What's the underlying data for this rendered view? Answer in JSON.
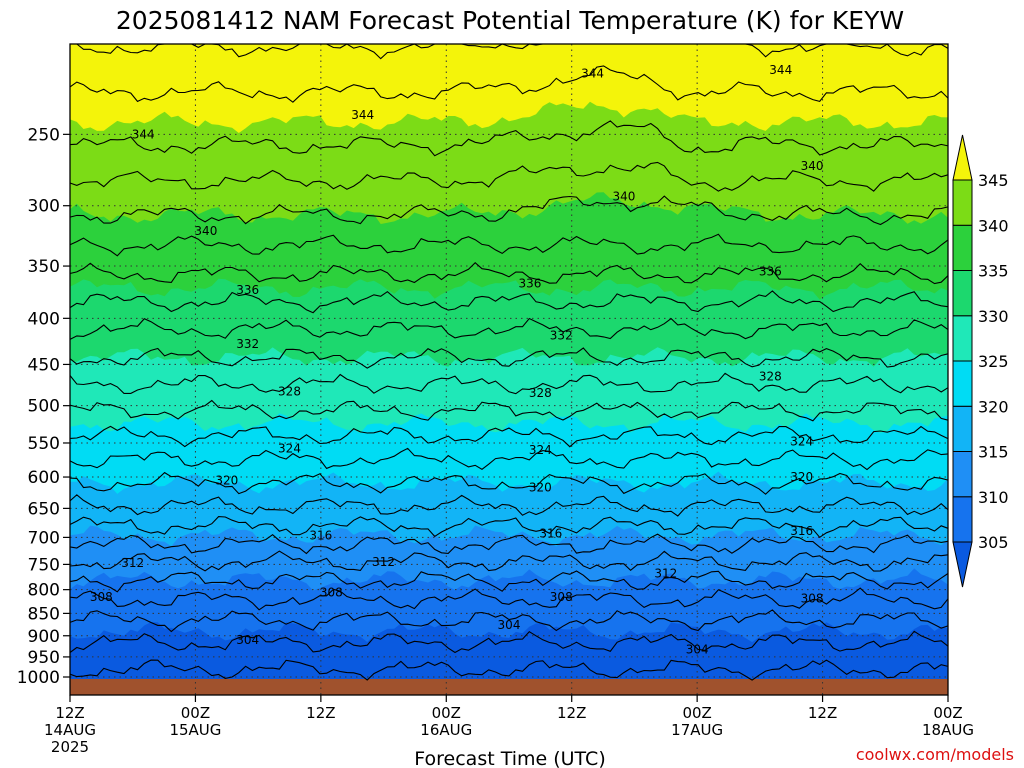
{
  "chart_data": {
    "type": "heatmap",
    "title": "2025081412 NAM Forecast Potential Temperature (K) for KEYW",
    "xlabel": "Forecast Time (UTC)",
    "ylabel": "",
    "y_scale": "log",
    "y_reversed": true,
    "ylim": [
      1000,
      200
    ],
    "y_ticks": [
      250,
      300,
      350,
      400,
      450,
      500,
      550,
      600,
      650,
      700,
      750,
      800,
      850,
      900,
      950,
      1000
    ],
    "xlim": [
      0,
      84
    ],
    "x_ticks": [
      {
        "h": 0,
        "line1": "12Z",
        "line2": "14AUG",
        "line3": "2025"
      },
      {
        "h": 12,
        "line1": "00Z",
        "line2": "15AUG",
        "line3": ""
      },
      {
        "h": 24,
        "line1": "12Z",
        "line2": "",
        "line3": ""
      },
      {
        "h": 36,
        "line1": "00Z",
        "line2": "16AUG",
        "line3": ""
      },
      {
        "h": 48,
        "line1": "12Z",
        "line2": "",
        "line3": ""
      },
      {
        "h": 60,
        "line1": "00Z",
        "line2": "17AUG",
        "line3": ""
      },
      {
        "h": 72,
        "line1": "12Z",
        "line2": "",
        "line3": ""
      },
      {
        "h": 84,
        "line1": "00Z",
        "line2": "18AUG",
        "line3": ""
      }
    ],
    "grid": true,
    "ground_color": "#a0522d",
    "colorbar": {
      "levels": [
        305,
        310,
        315,
        320,
        325,
        330,
        335,
        340,
        345
      ],
      "colors": [
        "#0a5ae0",
        "#1673ee",
        "#1f8ff5",
        "#12b4f6",
        "#00dcf4",
        "#1fe8b8",
        "#1cd86e",
        "#2cd13c",
        "#7cdc16",
        "#b4ea0a",
        "#f4f40a"
      ]
    },
    "contours": [
      {
        "value": 304,
        "label_pos": [
          [
            17,
            910
          ],
          [
            60,
            932
          ],
          [
            42,
            876
          ]
        ]
      },
      {
        "value": 308,
        "label_pos": [
          [
            3,
            815
          ],
          [
            25,
            806
          ],
          [
            47,
            815
          ],
          [
            71,
            818
          ]
        ]
      },
      {
        "value": 312,
        "label_pos": [
          [
            6,
            747
          ],
          [
            30,
            745
          ],
          [
            57,
            768
          ]
        ]
      },
      {
        "value": 316,
        "label_pos": [
          [
            24,
            697
          ],
          [
            46,
            693
          ],
          [
            70,
            689
          ]
        ]
      },
      {
        "value": 320,
        "label_pos": [
          [
            15,
            605
          ],
          [
            45,
            616
          ],
          [
            70,
            600
          ]
        ]
      },
      {
        "value": 324,
        "label_pos": [
          [
            21,
            558
          ],
          [
            45,
            560
          ],
          [
            70,
            548
          ]
        ]
      },
      {
        "value": 328,
        "label_pos": [
          [
            21,
            482
          ],
          [
            45,
            484
          ],
          [
            67,
            464
          ]
        ]
      },
      {
        "value": 332,
        "label_pos": [
          [
            17,
            427
          ],
          [
            47,
            418
          ]
        ]
      },
      {
        "value": 336,
        "label_pos": [
          [
            17,
            372
          ],
          [
            44,
            366
          ],
          [
            67,
            355
          ]
        ]
      },
      {
        "value": 340,
        "label_pos": [
          [
            13,
            320
          ],
          [
            53,
            293
          ],
          [
            71,
            271
          ]
        ]
      },
      {
        "value": 344,
        "label_pos": [
          [
            7,
            250
          ],
          [
            28,
            238
          ],
          [
            50,
            214
          ],
          [
            68,
            212
          ]
        ]
      }
    ],
    "profile": {
      "pressure": [
        1000,
        950,
        900,
        850,
        800,
        750,
        700,
        650,
        600,
        550,
        500,
        450,
        400,
        350,
        300,
        250,
        200
      ],
      "theta": [
        301.5,
        302.8,
        304.6,
        306.6,
        309.0,
        311.7,
        314.8,
        317.8,
        320.5,
        323.4,
        326.4,
        329.5,
        332.8,
        336.6,
        340.6,
        344.6,
        347.5
      ]
    }
  },
  "credit": "coolwx.com/models"
}
